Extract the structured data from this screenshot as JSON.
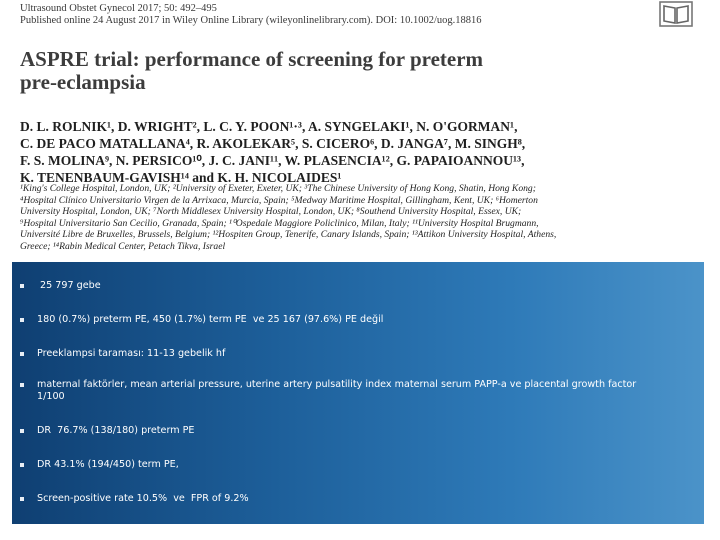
{
  "paper": {
    "journal_line_1": "Ultrasound Obstet Gynecol 2017; 50: 492–495",
    "journal_line_2": "Published online 24 August 2017 in Wiley Online Library (wileyonlinelibrary.com). DOI: 10.1002/uog.18816",
    "logo_icon": "open-book-icon",
    "title_line_1": "ASPRE trial: performance of screening for preterm",
    "title_line_2": "pre-eclampsia",
    "authors": [
      "D. L. ROLNIK¹, D. WRIGHT², L. C. Y. POON¹·³, A. SYNGELAKI¹, N. O'GORMAN¹,",
      "C. DE PACO MATALLANA⁴, R. AKOLEKAR⁵, S. CICERO⁶, D. JANGA⁷, M. SINGH⁸,",
      "F. S. MOLINA⁹, N. PERSICO¹⁰, J. C. JANI¹¹, W. PLASENCIA¹², G. PAPAIOANNOU¹³,",
      "K. TENENBAUM-GAVISH¹⁴ and K. H. NICOLAIDES¹"
    ],
    "affiliations": [
      "¹King's College Hospital, London, UK; ²University of Exeter, Exeter, UK; ³The Chinese University of Hong Kong, Shatin, Hong Kong;",
      "⁴Hospital Clínico Universitario Virgen de la Arrixaca, Murcia, Spain; ⁵Medway Maritime Hospital, Gillingham, Kent, UK; ⁶Homerton",
      "University Hospital, London, UK; ⁷North Middlesex University Hospital, London, UK; ⁸Southend University Hospital, Essex, UK;",
      "⁹Hospital Universitario San Cecilio, Granada, Spain; ¹⁰Ospedale Maggiore Policlinico, Milan, Italy; ¹¹University Hospital Brugmann,",
      "Université Libre de Bruxelles, Brussels, Belgium; ¹²Hospiten Group, Tenerife, Canary Islands, Spain; ¹³Attikon University Hospital, Athens,",
      "Greece; ¹⁴Rabin Medical Center, Petach Tikva, Israel"
    ]
  },
  "bullets": [
    "25 797 gebe",
    "180 (0.7%) preterm PE, 450 (1.7%) term PE  ve 25 167 (97.6%) PE değil",
    "Preeklampsi taraması: 11-13 gebelik hf",
    "maternal faktörler, mean arterial pressure, uterine artery pulsatility index maternal serum PAPP-a ve placental growth factor 1/100",
    "DR  76.7% (138/180) preterm PE",
    "DR 43.1% (194/450) term PE,",
    "Screen-positive rate 10.5%  ve  FPR of 9.2%"
  ],
  "colors": {
    "panel_dark": "#0f3f72",
    "panel_light": "#4b93c9",
    "bullet_text": "#ffffff"
  }
}
